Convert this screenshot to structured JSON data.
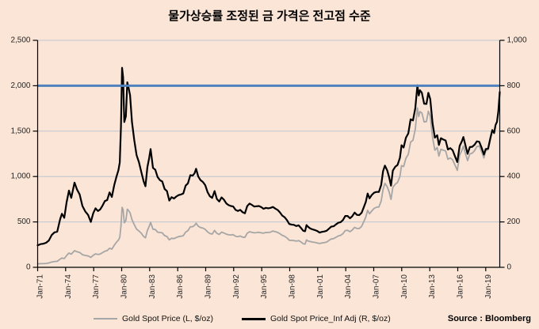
{
  "title": "물가상승률 조정된 금 가격은 전고점 수준",
  "source": "Source : Bloomberg",
  "legend": [
    {
      "label": "Gold Spot Price (L, $/oz)",
      "color": "#a6a6a6"
    },
    {
      "label": "Gold Spot Price_Inf Adj (R, $/oz)",
      "color": "#000000"
    }
  ],
  "chart_data": {
    "type": "line",
    "title": "물가상승률 조정된 금 가격은 전고점 수준",
    "background": "#fbe5d6",
    "colors": {
      "grid": "#bfc6d0",
      "axis": "#000000",
      "text": "#262626",
      "reference": "#4e81bd"
    },
    "x_axis": {
      "range": [
        1971,
        2020.5
      ],
      "tick_years": [
        1971,
        1974,
        1977,
        1980,
        1983,
        1986,
        1989,
        1992,
        1995,
        1998,
        2001,
        2004,
        2007,
        2010,
        2013,
        2016,
        2019
      ],
      "tick_labels": [
        "Jan-71",
        "Jan-74",
        "Jan-77",
        "Jan-80",
        "Jan-83",
        "Jan-86",
        "Jan-89",
        "Jan-92",
        "Jan-95",
        "Jan-98",
        "Jan-01",
        "Jan-04",
        "Jan-07",
        "Jan-10",
        "Jan-13",
        "Jan-16",
        "Jan-19"
      ]
    },
    "y_axis_left": {
      "range": [
        0,
        2500
      ],
      "values": [
        0,
        500,
        1000,
        1500,
        2000,
        2500
      ],
      "tick_labels": [
        "0",
        "500",
        "1,000",
        "1,500",
        "2,000",
        "2,500"
      ]
    },
    "y_axis_right": {
      "range": [
        0,
        1000
      ],
      "values": [
        0,
        200,
        400,
        600,
        800,
        1000
      ],
      "tick_labels": [
        "0",
        "200",
        "400",
        "600",
        "800",
        "1,000"
      ]
    },
    "reference_line": {
      "value_left": 2000,
      "value_right": 800,
      "color": "#4e81bd",
      "width": 3
    },
    "x": [
      1971.0,
      1971.3,
      1971.6,
      1971.9,
      1972.2,
      1972.5,
      1972.8,
      1973.1,
      1973.4,
      1973.6,
      1973.85,
      1974.1,
      1974.35,
      1974.6,
      1974.95,
      1975.2,
      1975.5,
      1975.8,
      1976.1,
      1976.4,
      1976.7,
      1976.95,
      1977.2,
      1977.45,
      1977.7,
      1977.95,
      1978.2,
      1978.45,
      1978.7,
      1978.95,
      1979.2,
      1979.45,
      1979.65,
      1979.8,
      1979.92,
      1980.04,
      1980.15,
      1980.28,
      1980.45,
      1980.6,
      1980.75,
      1980.9,
      1981.1,
      1981.35,
      1981.6,
      1981.85,
      1982.1,
      1982.35,
      1982.55,
      1982.75,
      1982.95,
      1983.1,
      1983.35,
      1983.6,
      1983.85,
      1984.1,
      1984.35,
      1984.6,
      1984.85,
      1985.1,
      1985.35,
      1985.6,
      1985.85,
      1986.1,
      1986.35,
      1986.6,
      1986.85,
      1987.1,
      1987.35,
      1987.6,
      1987.8,
      1987.97,
      1988.2,
      1988.45,
      1988.7,
      1988.95,
      1989.2,
      1989.45,
      1989.7,
      1989.95,
      1990.2,
      1990.45,
      1990.7,
      1990.95,
      1991.2,
      1991.45,
      1991.7,
      1991.95,
      1992.2,
      1992.45,
      1992.7,
      1992.95,
      1993.2,
      1993.45,
      1993.7,
      1993.95,
      1994.2,
      1994.45,
      1994.7,
      1994.95,
      1995.2,
      1995.45,
      1995.7,
      1995.95,
      1996.2,
      1996.45,
      1996.7,
      1996.95,
      1997.2,
      1997.45,
      1997.7,
      1997.95,
      1998.2,
      1998.45,
      1998.7,
      1998.95,
      1999.2,
      1999.45,
      1999.65,
      1999.8,
      1999.95,
      2000.2,
      2000.45,
      2000.7,
      2000.95,
      2001.2,
      2001.45,
      2001.7,
      2001.95,
      2002.2,
      2002.45,
      2002.7,
      2002.95,
      2003.2,
      2003.45,
      2003.7,
      2003.95,
      2004.2,
      2004.45,
      2004.7,
      2004.95,
      2005.2,
      2005.45,
      2005.7,
      2005.95,
      2006.15,
      2006.35,
      2006.55,
      2006.8,
      2007.05,
      2007.3,
      2007.55,
      2007.8,
      2008.0,
      2008.2,
      2008.45,
      2008.65,
      2008.85,
      2009.05,
      2009.3,
      2009.55,
      2009.8,
      2009.98,
      2010.2,
      2010.45,
      2010.7,
      2010.95,
      2011.2,
      2011.45,
      2011.68,
      2011.82,
      2011.95,
      2012.15,
      2012.4,
      2012.65,
      2012.85,
      2013.05,
      2013.3,
      2013.55,
      2013.8,
      2013.98,
      2014.2,
      2014.45,
      2014.7,
      2014.95,
      2015.2,
      2015.45,
      2015.7,
      2015.95,
      2016.2,
      2016.45,
      2016.6,
      2016.85,
      2017.05,
      2017.3,
      2017.55,
      2017.8,
      2018.05,
      2018.3,
      2018.55,
      2018.8,
      2019.0,
      2019.25,
      2019.5,
      2019.7,
      2019.9,
      2020.05,
      2020.2,
      2020.35,
      2020.5
    ],
    "series": [
      {
        "name": "Gold Spot Price (L, $/oz)",
        "axis": "left",
        "color": "#a6a6a6",
        "width": 1.8,
        "values": [
          38,
          40,
          41,
          43,
          48,
          58,
          64,
          66,
          90,
          102,
          96,
          130,
          158,
          145,
          183,
          172,
          164,
          139,
          131,
          125,
          110,
          132,
          148,
          142,
          146,
          162,
          178,
          184,
          210,
          200,
          242,
          278,
          300,
          330,
          455,
          660,
          635,
          490,
          515,
          640,
          625,
          600,
          525,
          470,
          420,
          400,
          375,
          340,
          325,
          405,
          450,
          495,
          420,
          416,
          388,
          383,
          380,
          348,
          340,
          302,
          320,
          316,
          328,
          338,
          342,
          348,
          388,
          404,
          446,
          448,
          462,
          486,
          452,
          438,
          432,
          418,
          390,
          372,
          366,
          406,
          374,
          362,
          388,
          378,
          366,
          358,
          356,
          360,
          342,
          337,
          345,
          333,
          330,
          375,
          392,
          385,
          380,
          382,
          386,
          380,
          376,
          384,
          383,
          388,
          400,
          392,
          385,
          370,
          352,
          342,
          324,
          298,
          296,
          294,
          288,
          294,
          280,
          260,
          256,
          302,
          290,
          284,
          278,
          274,
          268,
          262,
          268,
          272,
          278,
          296,
          312,
          316,
          330,
          345,
          352,
          370,
          405,
          408,
          392,
          410,
          440,
          428,
          428,
          450,
          505,
          555,
          628,
          590,
          622,
          650,
          662,
          665,
          730,
          860,
          925,
          885,
          832,
          748,
          880,
          915,
          935,
          1000,
          1120,
          1110,
          1200,
          1245,
          1380,
          1400,
          1520,
          1755,
          1660,
          1715,
          1700,
          1600,
          1605,
          1720,
          1665,
          1430,
          1290,
          1320,
          1225,
          1300,
          1290,
          1282,
          1190,
          1205,
          1185,
          1125,
          1068,
          1235,
          1290,
          1335,
          1245,
          1175,
          1250,
          1258,
          1285,
          1330,
          1335,
          1275,
          1205,
          1285,
          1295,
          1412,
          1500,
          1472,
          1565,
          1600,
          1715,
          1930
        ]
      },
      {
        "name": "Gold Spot Price_Inf Adj (R, $/oz)",
        "axis": "right",
        "color": "#000000",
        "width": 2.2,
        "values": [
          97,
          102,
          104,
          108,
          118,
          142,
          154,
          157,
          211,
          236,
          218,
          286,
          338,
          306,
          373,
          344,
          321,
          270,
          246,
          231,
          200,
          238,
          260,
          248,
          255,
          272,
          292,
          296,
          330,
          310,
          362,
          400,
          428,
          462,
          620,
          879,
          838,
          640,
          665,
          815,
          790,
          758,
          640,
          560,
          494,
          463,
          421,
          379,
          357,
          440,
          482,
          521,
          438,
          430,
          398,
          384,
          378,
          345,
          336,
          294,
          309,
          303,
          312,
          318,
          321,
          325,
          360,
          370,
          406,
          404,
          414,
          434,
          400,
          384,
          376,
          362,
          331,
          313,
          306,
          336,
          301,
          290,
          308,
          298,
          282,
          274,
          270,
          268,
          253,
          248,
          253,
          243,
          238,
          270,
          281,
          275,
          268,
          269,
          270,
          265,
          258,
          262,
          260,
          262,
          266,
          259,
          253,
          242,
          228,
          221,
          208,
          191,
          188,
          187,
          182,
          185,
          174,
          161,
          159,
          186,
          179,
          171,
          167,
          164,
          160,
          153,
          156,
          158,
          161,
          170,
          179,
          181,
          189,
          196,
          199,
          208,
          226,
          226,
          216,
          225,
          241,
          231,
          230,
          240,
          266,
          288,
          325,
          304,
          319,
          329,
          332,
          332,
          363,
          424,
          448,
          426,
          397,
          360,
          426,
          443,
          451,
          482,
          538,
          528,
          571,
          590,
          652,
          647,
          700,
          802,
          757,
          780,
          769,
          721,
          720,
          769,
          741,
          635,
          571,
          582,
          539,
          569,
          563,
          559,
          519,
          525,
          516,
          489,
          464,
          535,
          556,
          574,
          533,
          500,
          530,
          531,
          540,
          555,
          553,
          528,
          497,
          521,
          523,
          570,
          605,
          592,
          627,
          641,
          687,
          772
        ]
      }
    ]
  }
}
